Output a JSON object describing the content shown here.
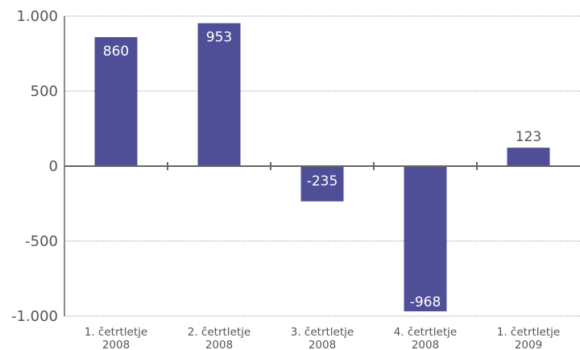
{
  "chart_data": {
    "type": "bar",
    "title": "",
    "xlabel": "",
    "ylabel": "",
    "categories": [
      [
        "1. četrtletje",
        "2008"
      ],
      [
        "2. četrtletje",
        "2008"
      ],
      [
        "3. četrtletje",
        "2008"
      ],
      [
        "4. četrtletje",
        "2008"
      ],
      [
        "1. četrtletje",
        "2009"
      ]
    ],
    "values": [
      860,
      953,
      -235,
      -968,
      123
    ],
    "value_labels": [
      "860",
      "953",
      "-235",
      "-968",
      "123"
    ],
    "ylim": [
      -1000,
      1000
    ],
    "yticks": [
      1000,
      500,
      0,
      -500,
      -1000
    ],
    "ytick_labels": [
      "1.000",
      "500",
      "0",
      "-500",
      "-1.000"
    ],
    "grid": true,
    "legend": "none",
    "colors": {
      "bar": "#4f4f98",
      "label_inside": "#ffffff",
      "label_outside": "#555555",
      "grid": "#9a9a9a",
      "axis": "#666666"
    }
  }
}
